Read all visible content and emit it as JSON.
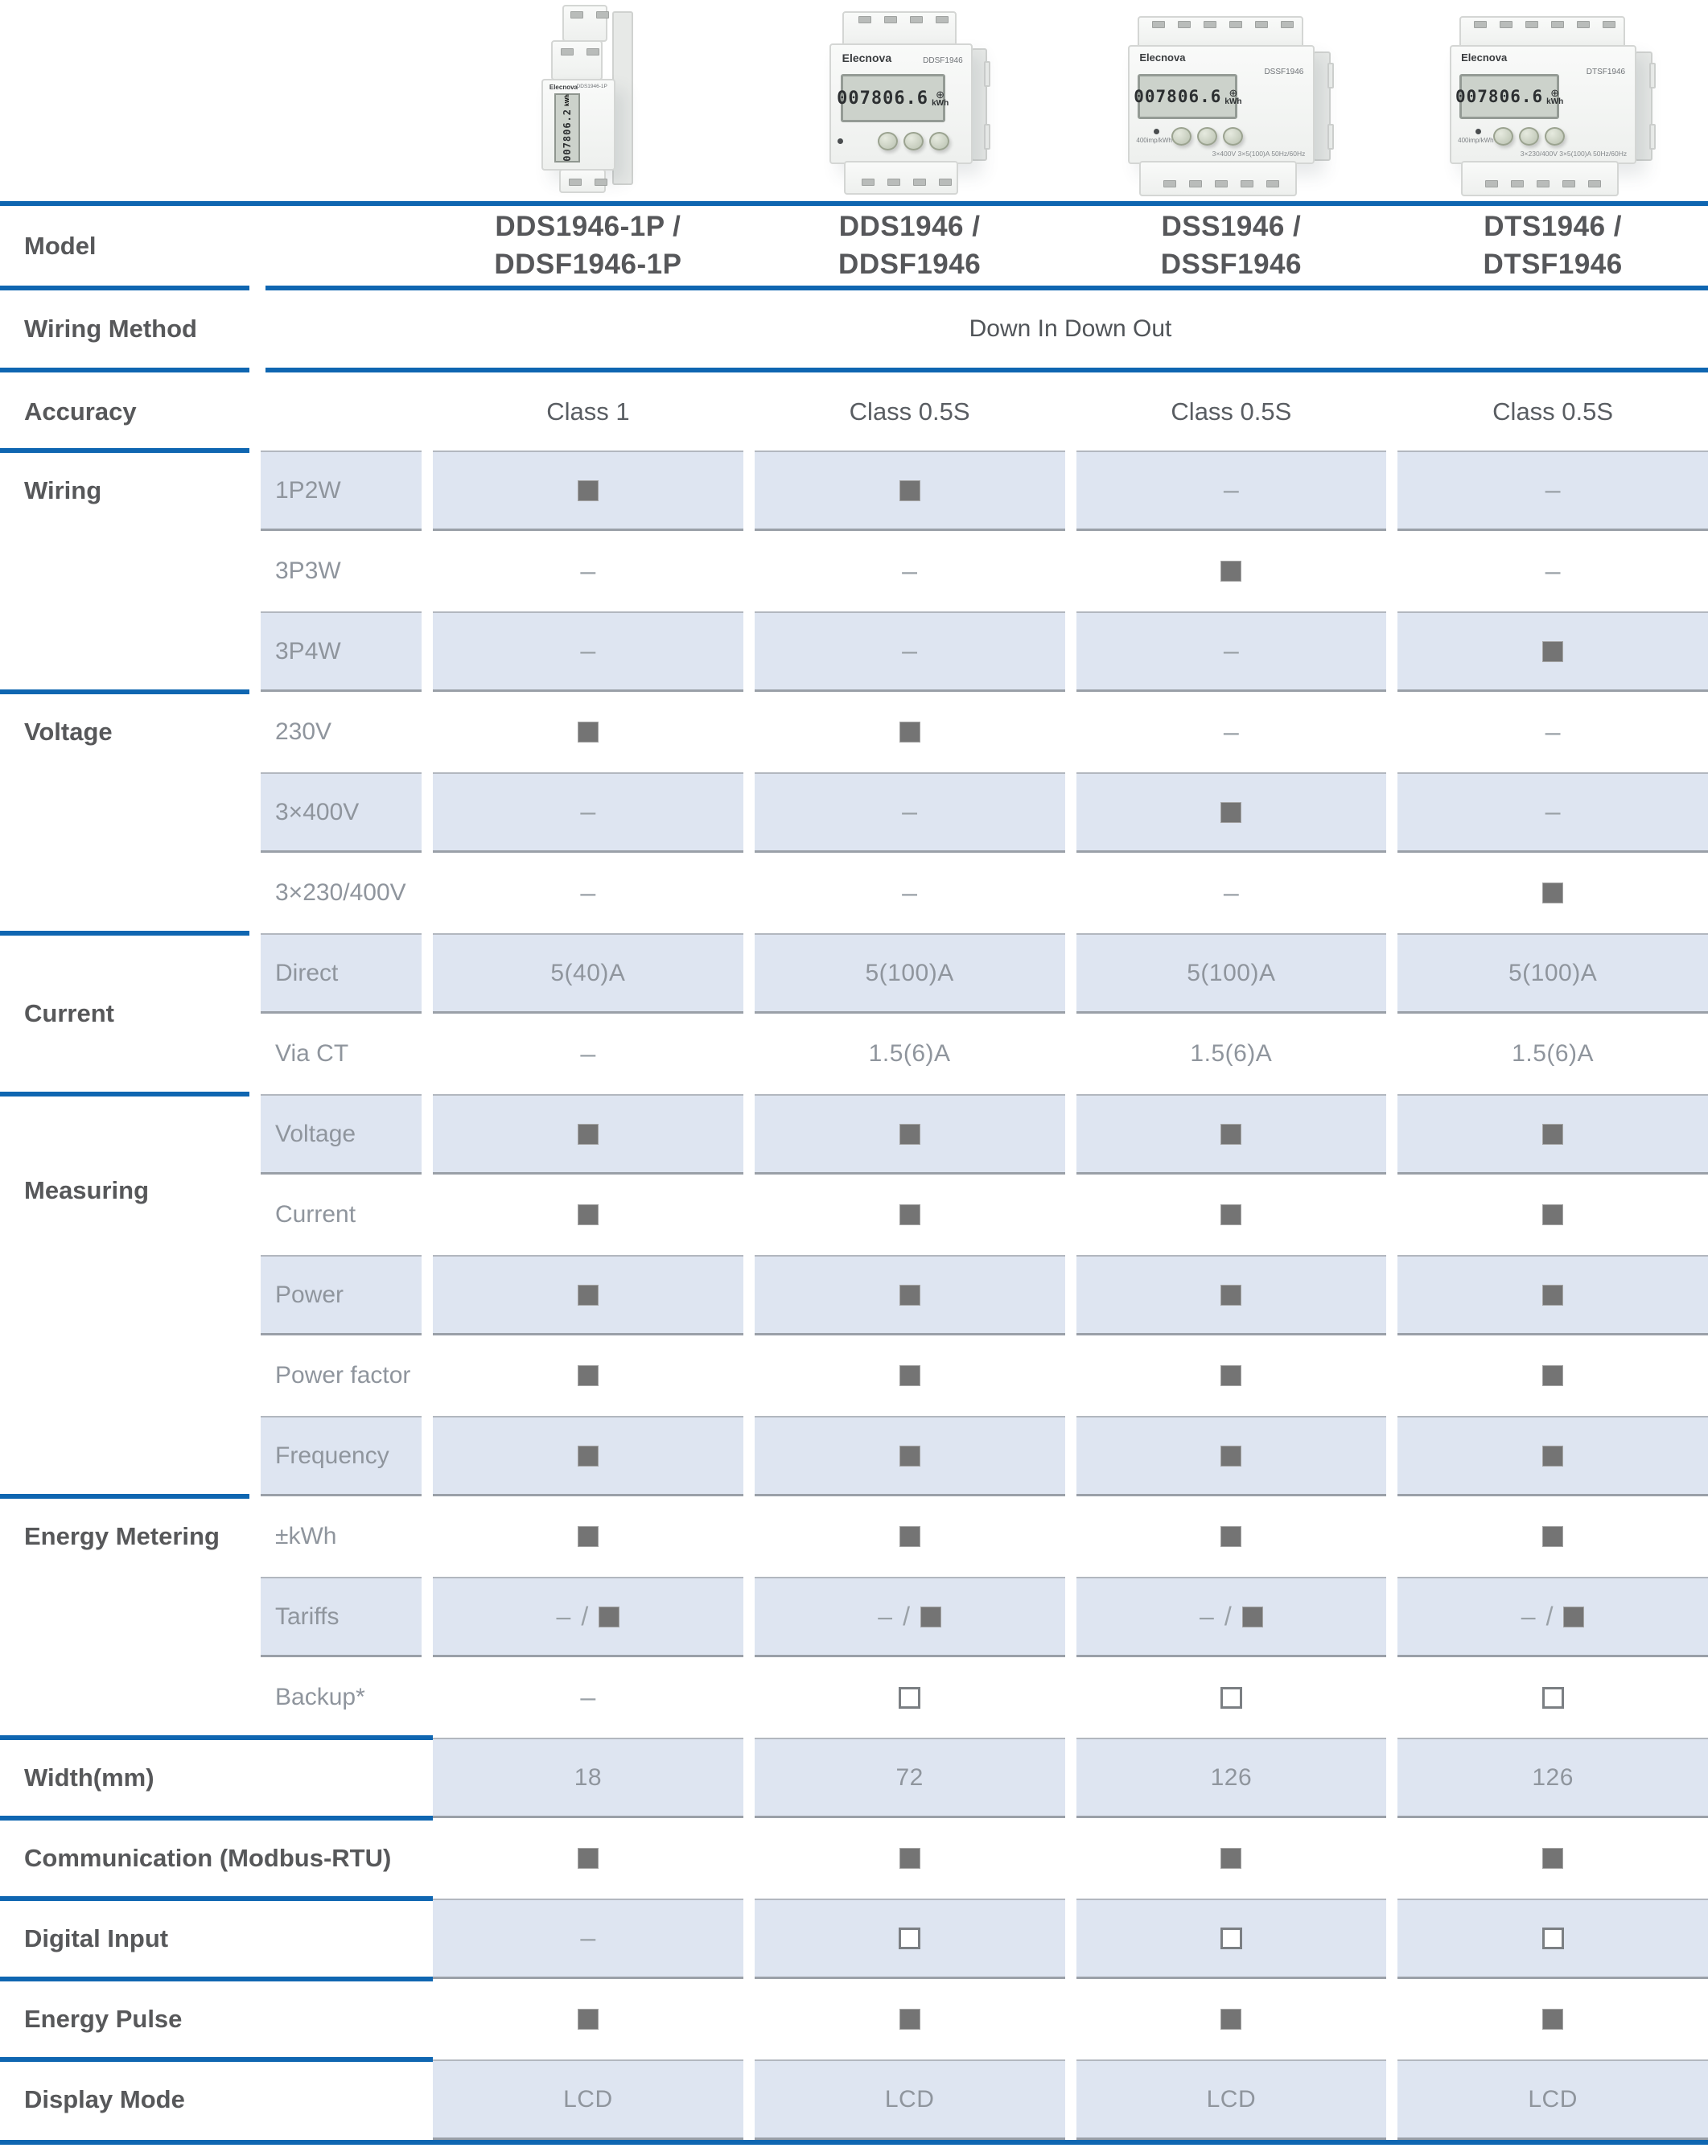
{
  "brand": "Elecnova",
  "colors": {
    "accent_blue": "#0f66b1",
    "row_shade": "#dee5f1",
    "filled_square": "#747474",
    "empty_square_border": "#7b7f83",
    "category_text": "#57585a",
    "muted_text": "#8f959d"
  },
  "glyphs": {
    "dash": "–",
    "slash": "/",
    "lcd_circle_plus": "⊕"
  },
  "header": {
    "model_label": "Model",
    "wiring_method_label": "Wiring Method",
    "wiring_method_value": "Down In Down Out",
    "accuracy_label": "Accuracy",
    "accuracy_values": [
      "Class 1",
      "Class 0.5S",
      "Class 0.5S",
      "Class 0.5S"
    ]
  },
  "products": [
    {
      "model_line1": "DDS1946-1P /",
      "model_line2": "DDSF1946-1P",
      "face_label": "DDS1946-1P",
      "lcd_value": "007806.2",
      "lcd_unit": "kWh",
      "style": "slim"
    },
    {
      "model_line1": "DDS1946 /",
      "model_line2": "DDSF1946",
      "face_label": "DDSF1946",
      "lcd_value": "007806.6",
      "lcd_unit": "kWh",
      "style": "mid"
    },
    {
      "model_line1": "DSS1946 /",
      "model_line2": "DSSF1946",
      "face_label": "DSSF1946",
      "lcd_value": "007806.6",
      "lcd_unit": "kWh",
      "style": "wide",
      "imp_text": "400imp/kWh",
      "spec_text": "3×400V 3×5(100)A 50Hz/60Hz"
    },
    {
      "model_line1": "DTS1946 /",
      "model_line2": "DTSF1946",
      "face_label": "DTSF1946",
      "lcd_value": "007806.6",
      "lcd_unit": "kWh",
      "style": "wide",
      "imp_text": "400imp/kWh",
      "spec_text": "3×230/400V 3×5(100)A 50Hz/60Hz"
    }
  ],
  "sections": [
    {
      "label": "Wiring",
      "label_pos": "first-row",
      "rows": [
        {
          "sub": "1P2W",
          "shaded": true,
          "cells": [
            "sq",
            "sq",
            "dash",
            "dash"
          ]
        },
        {
          "sub": "3P3W",
          "shaded": false,
          "cells": [
            "dash",
            "dash",
            "sq",
            "dash"
          ]
        },
        {
          "sub": "3P4W",
          "shaded": true,
          "cells": [
            "dash",
            "dash",
            "dash",
            "sq"
          ]
        }
      ]
    },
    {
      "label": "Voltage",
      "label_pos": "first-row",
      "rows": [
        {
          "sub": "230V",
          "shaded": false,
          "cells": [
            "sq",
            "sq",
            "dash",
            "dash"
          ]
        },
        {
          "sub": "3×400V",
          "shaded": true,
          "cells": [
            "dash",
            "dash",
            "sq",
            "dash"
          ]
        },
        {
          "sub": "3×230/400V",
          "shaded": false,
          "cells": [
            "dash",
            "dash",
            "dash",
            "sq"
          ]
        }
      ]
    },
    {
      "label": "Current",
      "label_pos": "center",
      "rows": [
        {
          "sub": "Direct",
          "shaded": true,
          "cells": [
            {
              "text": "5(40)A"
            },
            {
              "text": "5(100)A"
            },
            {
              "text": "5(100)A"
            },
            {
              "text": "5(100)A"
            }
          ]
        },
        {
          "sub": "Via CT",
          "shaded": false,
          "cells": [
            "dash",
            {
              "text": "1.5(6)A"
            },
            {
              "text": "1.5(6)A"
            },
            {
              "text": "1.5(6)A"
            }
          ]
        }
      ]
    },
    {
      "label": "Measuring",
      "label_pos": "offset",
      "rows": [
        {
          "sub": "Voltage",
          "shaded": true,
          "cells": [
            "sq",
            "sq",
            "sq",
            "sq"
          ]
        },
        {
          "sub": "Current",
          "shaded": false,
          "cells": [
            "sq",
            "sq",
            "sq",
            "sq"
          ]
        },
        {
          "sub": "Power",
          "shaded": true,
          "cells": [
            "sq",
            "sq",
            "sq",
            "sq"
          ]
        },
        {
          "sub": "Power factor",
          "shaded": false,
          "cells": [
            "sq",
            "sq",
            "sq",
            "sq"
          ]
        },
        {
          "sub": "Frequency",
          "shaded": true,
          "cells": [
            "sq",
            "sq",
            "sq",
            "sq"
          ]
        }
      ]
    },
    {
      "label": "Energy Metering",
      "label_pos": "first-row",
      "rows": [
        {
          "sub": "±kWh",
          "shaded": false,
          "cells": [
            "sq",
            "sq",
            "sq",
            "sq"
          ]
        },
        {
          "sub": "Tariffs",
          "shaded": true,
          "cells": [
            "tariff",
            "tariff",
            "tariff",
            "tariff"
          ]
        },
        {
          "sub": "Backup*",
          "shaded": false,
          "cells": [
            "dash",
            "box",
            "box",
            "box"
          ]
        }
      ]
    }
  ],
  "bottom_rows": [
    {
      "label": "Width(mm)",
      "shaded": true,
      "cells": [
        {
          "text": "18"
        },
        {
          "text": "72"
        },
        {
          "text": "126"
        },
        {
          "text": "126"
        }
      ]
    },
    {
      "label": "Communication (Modbus-RTU)",
      "shaded": false,
      "cells": [
        "sq",
        "sq",
        "sq",
        "sq"
      ]
    },
    {
      "label": "Digital Input",
      "shaded": true,
      "cells": [
        "dash",
        "box",
        "box",
        "box"
      ]
    },
    {
      "label": "Energy Pulse",
      "shaded": false,
      "cells": [
        "sq",
        "sq",
        "sq",
        "sq"
      ]
    },
    {
      "label": "Display Mode",
      "shaded": true,
      "cells": [
        {
          "text": "LCD"
        },
        {
          "text": "LCD"
        },
        {
          "text": "LCD"
        },
        {
          "text": "LCD"
        }
      ]
    }
  ]
}
